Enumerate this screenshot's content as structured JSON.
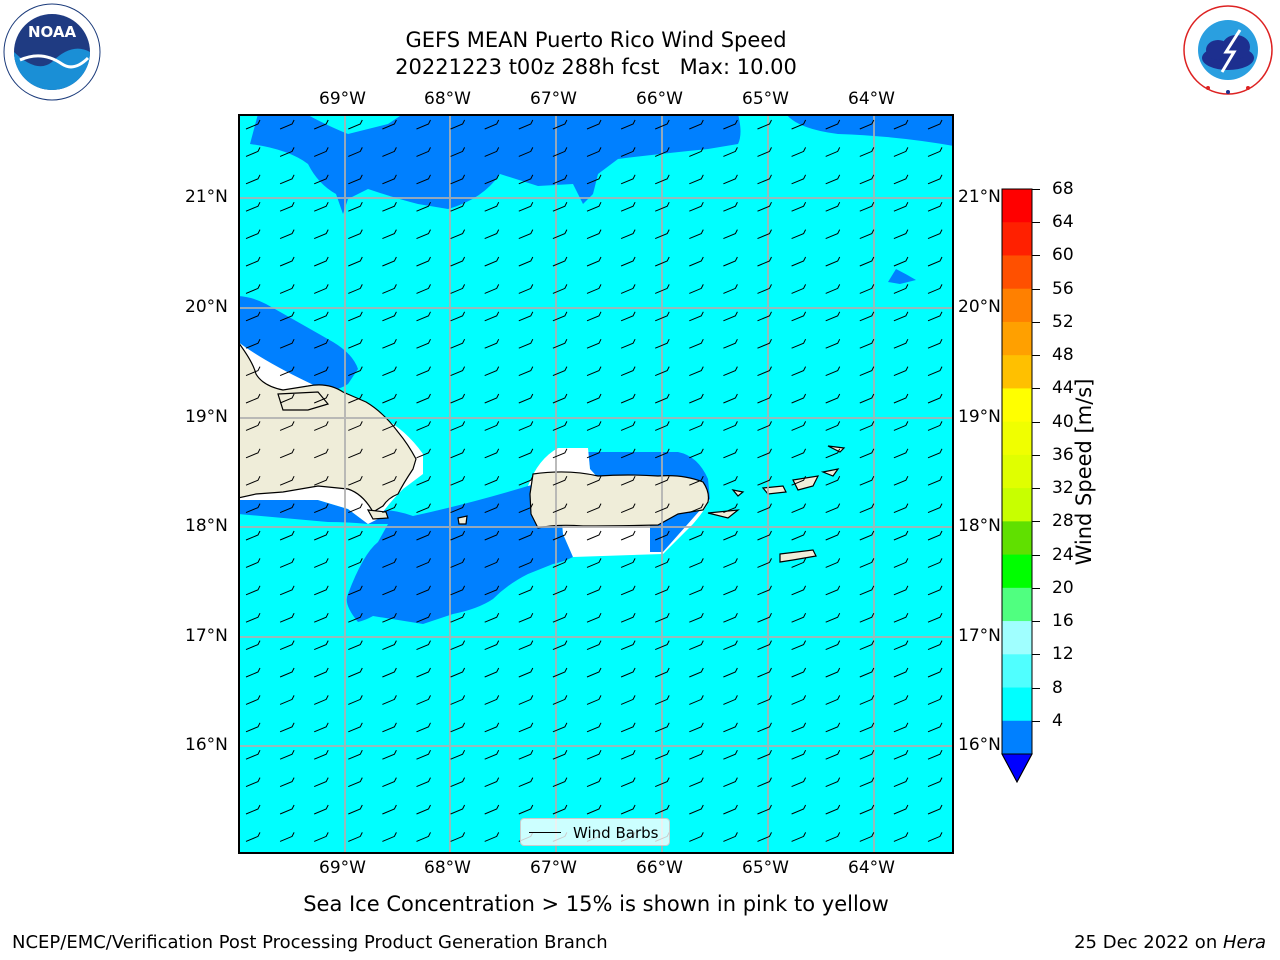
{
  "title": {
    "line1": "GEFS MEAN Puerto Rico Wind Speed",
    "line2": "20221223 t00z 288h fcst   Max: 10.00"
  },
  "logos": {
    "left": {
      "text": "NOAA",
      "ring_text": "NATIONAL OCEANIC AND ATMOSPHERIC ADMINISTRATION · U.S. DEPARTMENT OF COMMERCE",
      "icon": "noaa-logo"
    },
    "right": {
      "ring_text": "NATIONAL WEATHER SERVICE",
      "icon": "nws-logo"
    }
  },
  "map": {
    "lon_labels": [
      "69°W",
      "68°W",
      "67°W",
      "66°W",
      "65°W",
      "64°W"
    ],
    "lat_labels": [
      "21°N",
      "20°N",
      "19°N",
      "18°N",
      "17°N",
      "16°N"
    ],
    "colors": {
      "ocean_light": "#00ffff",
      "ocean_dark": "#0080ff",
      "land": "#efedd9",
      "gridline": "#b0b0b0"
    }
  },
  "legend": {
    "label": "Wind Barbs"
  },
  "colorbar": {
    "label": "Wind Speed [m/s]",
    "ticks": [
      "68",
      "64",
      "60",
      "56",
      "52",
      "48",
      "44",
      "40",
      "36",
      "32",
      "28",
      "24",
      "20",
      "16",
      "12",
      "8",
      "4"
    ],
    "bins_top_to_bottom": [
      "#ff0000",
      "#ff2000",
      "#ff5000",
      "#ff8000",
      "#ffa000",
      "#ffc000",
      "#ffff00",
      "#f0ff00",
      "#e0ff00",
      "#c8ff00",
      "#60e000",
      "#00ff00",
      "#50ff80",
      "#a0ffff",
      "#50ffff",
      "#00ffff",
      "#0080ff"
    ],
    "under_color": "#0000ff"
  },
  "caption": "Sea Ice Concentration > 15% is shown in pink to yellow",
  "footer": {
    "left": "NCEP/EMC/Verification Post Processing Product Generation Branch",
    "date": "25 Dec 2022 on ",
    "host": "Hera"
  }
}
